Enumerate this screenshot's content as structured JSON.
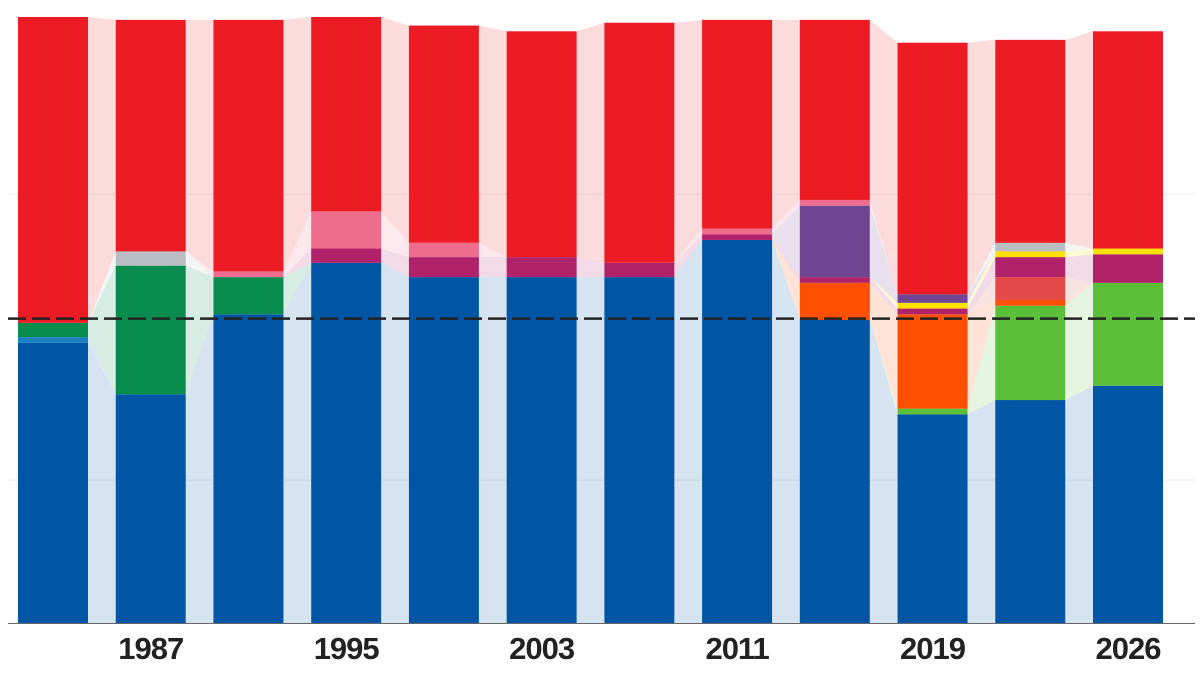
{
  "chart_data": {
    "type": "stacked-bar",
    "categories": [
      null,
      "1987",
      null,
      "1995",
      null,
      "2003",
      null,
      "2011",
      null,
      "2019",
      null,
      "2026"
    ],
    "series": [
      {
        "color": "#0055a5",
        "values": [
          98,
          80,
          108,
          126,
          121,
          121,
          121,
          134,
          106,
          73,
          78,
          83
        ]
      },
      {
        "color": "#1a7fc1",
        "values": [
          2,
          0,
          0,
          0,
          0,
          0,
          0,
          0,
          0,
          0,
          0,
          0
        ]
      },
      {
        "color": "#078c4e",
        "values": [
          5,
          45,
          13,
          0,
          0,
          0,
          0,
          0,
          0,
          0,
          0,
          0
        ]
      },
      {
        "color": "#5bbf3a",
        "values": [
          0,
          0,
          0,
          0,
          0,
          0,
          0,
          0,
          0,
          2,
          33,
          36
        ]
      },
      {
        "color": "#ff4f00",
        "values": [
          0,
          0,
          0,
          0,
          0,
          0,
          0,
          0,
          13,
          33,
          2,
          0
        ]
      },
      {
        "color": "#e44a4a",
        "values": [
          0,
          0,
          0,
          0,
          0,
          0,
          0,
          0,
          0,
          0,
          8,
          0
        ]
      },
      {
        "color": "#b0226a",
        "values": [
          0,
          0,
          0,
          5,
          7,
          7,
          5,
          2,
          2,
          2,
          7,
          10
        ]
      },
      {
        "color": "#ffe000",
        "values": [
          0,
          0,
          0,
          0,
          0,
          0,
          0,
          0,
          0,
          2,
          2,
          2
        ]
      },
      {
        "color": "#6f4591",
        "values": [
          0,
          0,
          0,
          0,
          0,
          0,
          0,
          0,
          25,
          3,
          0,
          0
        ]
      },
      {
        "color": "#b8bec2",
        "values": [
          0,
          5,
          0,
          0,
          0,
          0,
          0,
          0,
          0,
          0,
          3,
          0
        ]
      },
      {
        "color": "#ee6d8f",
        "values": [
          0,
          0,
          2,
          13,
          5,
          0,
          0,
          2,
          2,
          0,
          0,
          0
        ]
      },
      {
        "color": "#ed1c24",
        "values": [
          107,
          81,
          88,
          68,
          76,
          79,
          84,
          73,
          63,
          88,
          71,
          76
        ]
      }
    ],
    "ylim": [
      0,
      212
    ],
    "yticks": [
      50,
      150
    ],
    "grid": true,
    "majority_line": 106.5
  }
}
